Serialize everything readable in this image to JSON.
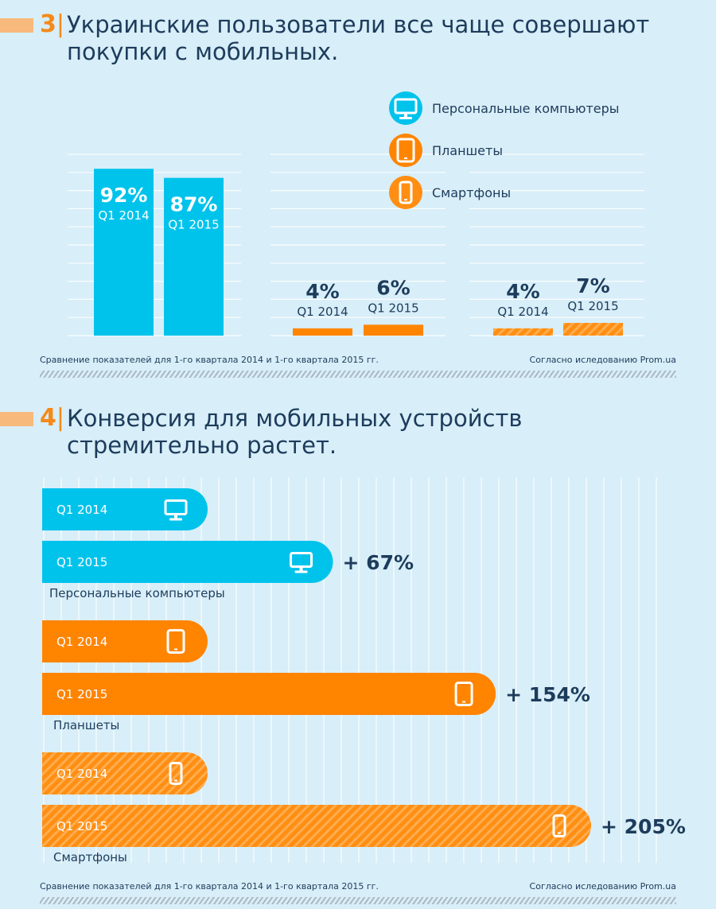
{
  "section3": {
    "number": "3",
    "title_line1": "Украинские пользователи все чаще совершают",
    "title_line2": "покупки с мобильных.",
    "footnote_left": "Сравнение показателей для 1-го квартала 2014 и 1-го квартала 2015 гг.",
    "footnote_right": "Согласно иследованию Prom.ua"
  },
  "section4": {
    "number": "4",
    "title_line1": "Конверсия для мобильных устройств",
    "title_line2": "стремительно растет.",
    "footnote_left": "Сравнение показателей для 1-го квартала 2014 и 1-го квартала 2015 гг.",
    "footnote_right": "Согласно иследованию Prom.ua"
  },
  "colors": {
    "pc": "#00c3ec",
    "tablet": "#ff8400",
    "smartphone": "#ff8e12",
    "stripe": "#ffad4f",
    "text_dark": "#1d3c5c",
    "background": "#d8eef8"
  },
  "chart_data": [
    {
      "type": "bar",
      "title": "",
      "categories": [
        "Q1 2014",
        "Q1 2015"
      ],
      "series": [
        {
          "name": "Персональные компьютеры",
          "icon": "monitor-icon",
          "values": [
            92,
            87
          ],
          "labels": [
            "92%",
            "87%"
          ]
        },
        {
          "name": "Планшеты",
          "icon": "tablet-icon",
          "values": [
            4,
            6
          ],
          "labels": [
            "4%",
            "6%"
          ]
        },
        {
          "name": "Смартфоны",
          "icon": "smartphone-icon",
          "values": [
            4,
            7
          ],
          "labels": [
            "4%",
            "7%"
          ]
        }
      ],
      "ylim": [
        0,
        100
      ],
      "legend": "top-right",
      "grid": true
    },
    {
      "type": "bar",
      "orientation": "horizontal",
      "title": "",
      "groups": [
        {
          "name": "Персональные компьютеры",
          "icon": "monitor-icon",
          "categories": [
            "Q1 2014",
            "Q1 2015"
          ],
          "growth": "+ 67%",
          "growth_value": 67
        },
        {
          "name": "Планшеты",
          "icon": "tablet-icon",
          "categories": [
            "Q1 2014",
            "Q1 2015"
          ],
          "growth": "+ 154%",
          "growth_value": 154
        },
        {
          "name": "Смартфоны",
          "icon": "smartphone-icon",
          "categories": [
            "Q1 2014",
            "Q1 2015"
          ],
          "growth": "+ 205%",
          "growth_value": 205
        }
      ],
      "grid": true
    }
  ]
}
